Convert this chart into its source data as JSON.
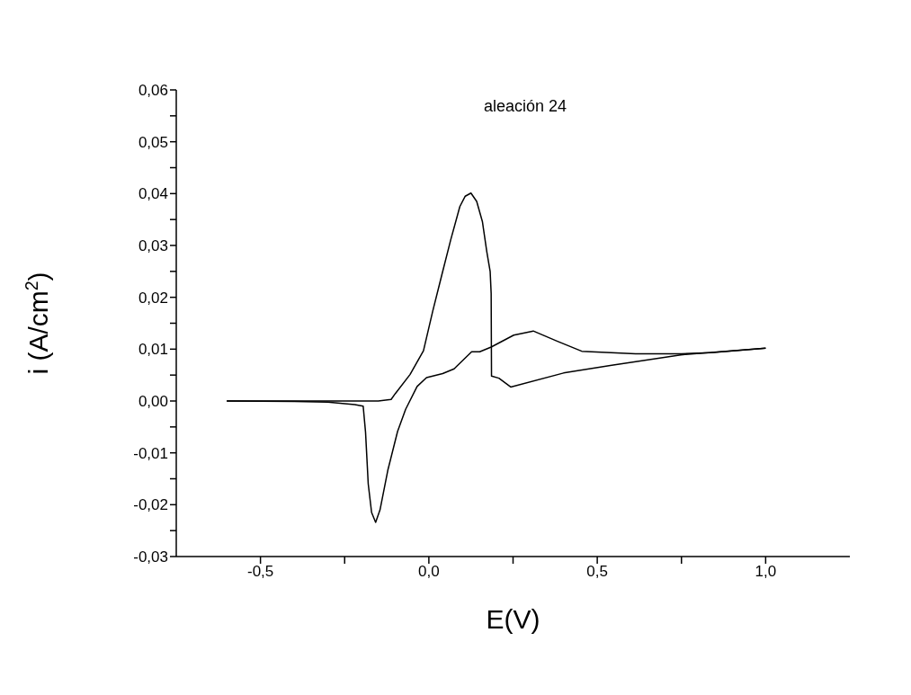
{
  "chart_data": {
    "type": "line",
    "title": "aleación 24",
    "xlabel": "E(V)",
    "ylabel": "i (A/cm$^{2}$)",
    "xlim": [
      -0.75,
      1.25
    ],
    "xticks": [
      {
        "value": -0.5,
        "label": "-0,5"
      },
      {
        "value": -0.25,
        "label": null
      },
      {
        "value": 0,
        "label": "0,0"
      },
      {
        "value": 0.25,
        "label": null
      },
      {
        "value": 0.5,
        "label": "0,5"
      },
      {
        "value": 0.75,
        "label": null
      },
      {
        "value": 1.0,
        "label": "1,0"
      }
    ],
    "ylim": [
      -0.03,
      0.06
    ],
    "yticks": [
      {
        "value": -0.03,
        "label": "-0,03"
      },
      {
        "value": -0.025,
        "label": null
      },
      {
        "value": -0.02,
        "label": "-0,02"
      },
      {
        "value": -0.015,
        "label": null
      },
      {
        "value": -0.01,
        "label": "-0,01"
      },
      {
        "value": -0.005,
        "label": null
      },
      {
        "value": 0,
        "label": "0,00"
      },
      {
        "value": 0.005,
        "label": null
      },
      {
        "value": 0.01,
        "label": "0,01"
      },
      {
        "value": 0.015,
        "label": null
      },
      {
        "value": 0.02,
        "label": "0,02"
      },
      {
        "value": 0.025,
        "label": null
      },
      {
        "value": 0.03,
        "label": "0,03"
      },
      {
        "value": 0.035,
        "label": null
      },
      {
        "value": 0.04,
        "label": "0,04"
      },
      {
        "value": 0.045,
        "label": null
      },
      {
        "value": 0.05,
        "label": "0,05"
      },
      {
        "value": 0.055,
        "label": null
      },
      {
        "value": 0.06,
        "label": "0,06"
      }
    ],
    "grid": false,
    "legend": false,
    "marker": "none",
    "line_style": "solid",
    "series": [
      {
        "color": "#000000",
        "x": [
          -0.6,
          -0.4,
          -0.3,
          -0.22,
          -0.195,
          -0.188,
          -0.18,
          -0.17,
          -0.158,
          -0.145,
          -0.122,
          -0.093,
          -0.069,
          -0.035,
          -0.007,
          0.041,
          0.075,
          0.127,
          0.151,
          0.185,
          0.252,
          0.31,
          0.382,
          0.454,
          0.614,
          0.75,
          0.838,
          1.0
        ],
        "values": [
          0,
          -0.0001,
          -0.0002,
          -0.0007,
          -0.001,
          -0.006,
          -0.016,
          -0.0215,
          -0.0234,
          -0.021,
          -0.0134,
          -0.0059,
          -0.0016,
          0.0028,
          0.0045,
          0.0053,
          0.0062,
          0.0095,
          0.0095,
          0.0104,
          0.0127,
          0.0135,
          0.0115,
          0.0096,
          0.0091,
          0.0091,
          0.0093,
          0.0102
        ]
      },
      {
        "color": "#000000",
        "x": [
          1.0,
          0.748,
          0.543,
          0.4,
          0.243,
          0.208,
          0.186,
          0.185,
          0.182,
          0.172,
          0.159,
          0.142,
          0.125,
          0.108,
          0.092,
          0.065,
          0.038,
          0.011,
          -0.016,
          -0.056,
          -0.1,
          -0.112,
          -0.15,
          -0.3,
          -0.6
        ],
        "values": [
          0.0102,
          0.0089,
          0.0069,
          0.0054,
          0.0027,
          0.0044,
          0.0048,
          0.0207,
          0.025,
          0.0288,
          0.0346,
          0.0385,
          0.0401,
          0.0395,
          0.0375,
          0.0311,
          0.0242,
          0.0172,
          0.0097,
          0.0051,
          0.0014,
          0.0003,
          0,
          0,
          0
        ]
      }
    ]
  }
}
